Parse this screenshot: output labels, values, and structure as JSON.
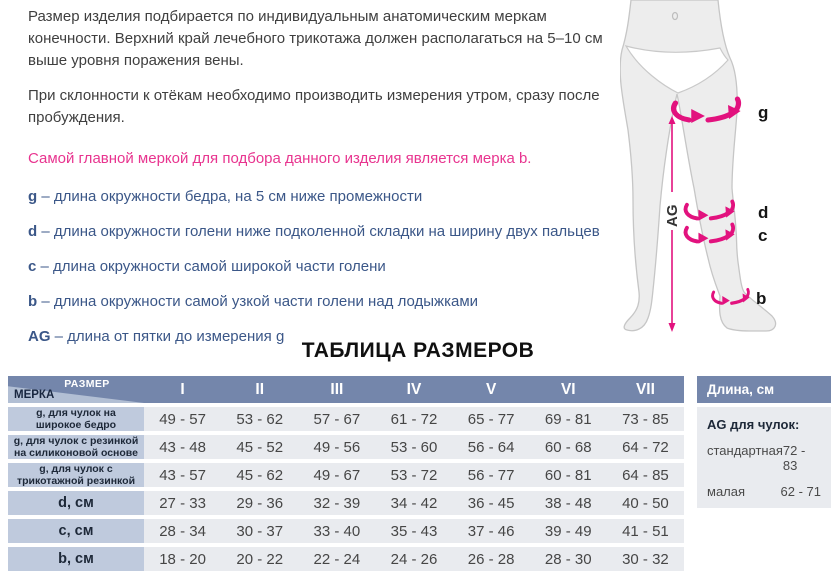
{
  "colors": {
    "accent": "#e2127e",
    "pink_text": "#e8348f",
    "navy": "#3b5788",
    "text_dark": "#3f3f3f",
    "header_blue": "#7486ab",
    "corner_light": "#b2bfd4",
    "corner_text": "#192740",
    "row_label_bg": "#bfcadd",
    "row_bg": "#e9ebef",
    "label_dark": "#1d2838"
  },
  "intro": {
    "paragraph1": "Размер изделия подбирается по индивидуальным анатомическим меркам конечности. Верхний край лечебного трикотажа должен располагаться на 5–10 см выше уровня поражения вены.",
    "paragraph2": "При склонности к отёкам необходимо производить измерения утром, сразу после пробуждения.",
    "highlight": "Самой главной меркой для подбора данного изделия является мерка b."
  },
  "definitions": [
    {
      "key": "g",
      "text": "– длина окружности бедра, на 5 см ниже промежности"
    },
    {
      "key": "d",
      "text": "– длина окружности голени ниже подколенной складки на ширину двух пальцев"
    },
    {
      "key": "c",
      "text": "– длина окружности самой широкой части голени"
    },
    {
      "key": "b",
      "text": "– длина окружности самой узкой части голени над лодыжками"
    },
    {
      "key": "AG",
      "text": "– длина от пятки до измерения g"
    }
  ],
  "diagram": {
    "labels": {
      "g": "g",
      "d": "d",
      "c": "c",
      "b": "b",
      "ag": "AG"
    }
  },
  "table": {
    "title": "ТАБЛИЦА РАЗМЕРОВ",
    "corner": {
      "top": "РАЗМЕР",
      "bottom": "МЕРКА"
    },
    "columns": [
      "I",
      "II",
      "III",
      "IV",
      "V",
      "VI",
      "VII"
    ],
    "rows": [
      {
        "label": "g, для чулок на широкое бедро",
        "small": true,
        "values": [
          "49 - 57",
          "53 - 62",
          "57 - 67",
          "61 - 72",
          "65 - 77",
          "69 - 81",
          "73 - 85"
        ]
      },
      {
        "label": "g, для чулок с резинкой на силиконовой основе",
        "small": true,
        "values": [
          "43 - 48",
          "45 - 52",
          "49 - 56",
          "53 - 60",
          "56 - 64",
          "60 - 68",
          "64 - 72"
        ]
      },
      {
        "label": "g, для чулок с трикотажной резинкой",
        "small": true,
        "values": [
          "43 - 57",
          "45 - 62",
          "49 - 67",
          "53 - 72",
          "56 - 77",
          "60 - 81",
          "64 - 85"
        ]
      },
      {
        "label": "d, см",
        "small": false,
        "values": [
          "27 - 33",
          "29 - 36",
          "32 - 39",
          "34 - 42",
          "36 - 45",
          "38 - 48",
          "40 - 50"
        ]
      },
      {
        "label": "c, см",
        "small": false,
        "values": [
          "28 - 34",
          "30 - 37",
          "33 - 40",
          "35 - 43",
          "37 - 46",
          "39 - 49",
          "41 - 51"
        ]
      },
      {
        "label": "b, см",
        "small": false,
        "values": [
          "18 - 20",
          "20 - 22",
          "22 - 24",
          "24 - 26",
          "26 - 28",
          "28 - 30",
          "30 - 32"
        ]
      }
    ]
  },
  "length_panel": {
    "header": "Длина, см",
    "subheader": "AG для чулок:",
    "rows": [
      {
        "label": "стандартная",
        "value": "72 - 83"
      },
      {
        "label": "малая",
        "value": "62 - 71"
      }
    ]
  }
}
